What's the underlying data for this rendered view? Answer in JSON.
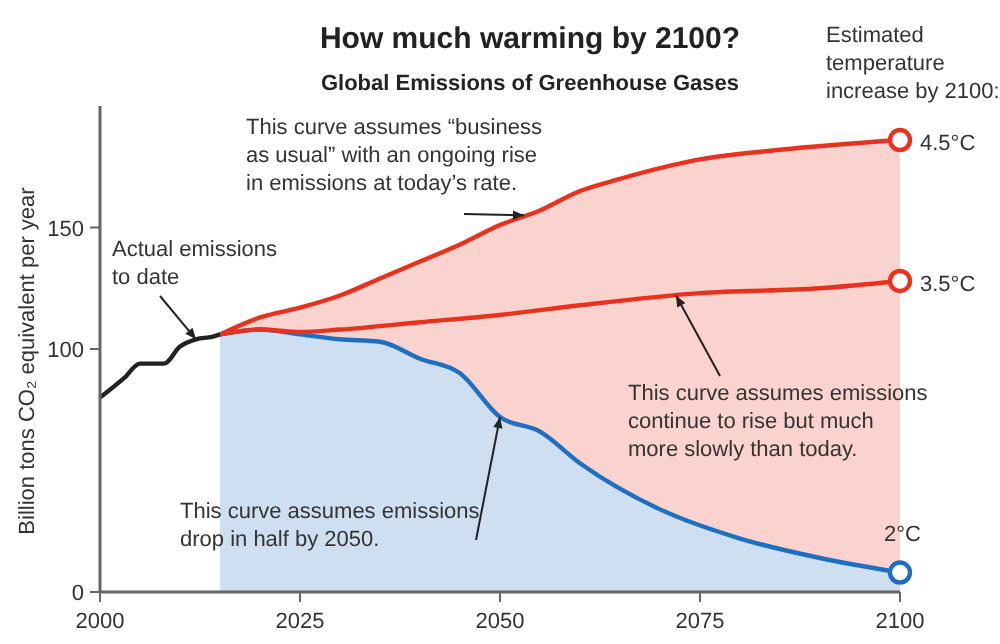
{
  "chart_data": {
    "type": "line",
    "title": "How much warming by 2100?",
    "subtitle": "Global Emissions of Greenhouse Gases",
    "ylabel": "Billion tons CO₂ equivalent per year",
    "xlim": [
      2000,
      2100
    ],
    "xticks": [
      2000,
      2025,
      2050,
      2075,
      2100
    ],
    "ylim": [
      0,
      200
    ],
    "yticks": [
      0,
      100,
      150
    ],
    "grid": false,
    "series": [
      {
        "type": "area",
        "color": "#e8321e",
        "x": [
          2015,
          2020,
          2025,
          2030,
          2035,
          2040,
          2045,
          2050,
          2055,
          2060,
          2065,
          2075,
          2085,
          2100
        ],
        "values": [
          106,
          113,
          117,
          122,
          129,
          136,
          143,
          151,
          157,
          165,
          170,
          178,
          182,
          186
        ]
      },
      {
        "type": "area",
        "color": "#1f6fc0",
        "x": [
          2015,
          2020,
          2025,
          2030,
          2035,
          2040,
          2045,
          2050,
          2055,
          2060,
          2070,
          2080,
          2090,
          2100
        ],
        "values": [
          106,
          108,
          106,
          104,
          103,
          96,
          90,
          72,
          66,
          53,
          34,
          22,
          14,
          8
        ]
      },
      {
        "color": "#e8321e",
        "x": [
          2015,
          2020,
          2025,
          2030,
          2040,
          2050,
          2060,
          2075,
          2090,
          2100
        ],
        "values": [
          106,
          108,
          107,
          108,
          111,
          114,
          118,
          123,
          125,
          128
        ]
      },
      {
        "color": "#222222",
        "x": [
          2000,
          2003,
          2005,
          2008,
          2010,
          2012,
          2014,
          2015
        ],
        "values": [
          80,
          88,
          94,
          94,
          101,
          104,
          105,
          106
        ]
      }
    ],
    "annotations": [
      {
        "text": "Actual emissions to date",
        "x": 2012,
        "y": 104
      },
      {
        "text": "This curve assumes “business as usual” with an ongoing rise in emissions at today’s rate.",
        "x": 2053,
        "y": 155
      },
      {
        "text": "This curve assumes emissions continue to rise but much more slowly than today.",
        "x": 2072,
        "y": 122
      },
      {
        "text": "This curve assumes emissions drop in half by 2050.",
        "x": 2050,
        "y": 72
      },
      "4.5°C",
      "3.5°C",
      "2°C",
      "Estimated temperature increase by 2100:"
    ]
  }
}
